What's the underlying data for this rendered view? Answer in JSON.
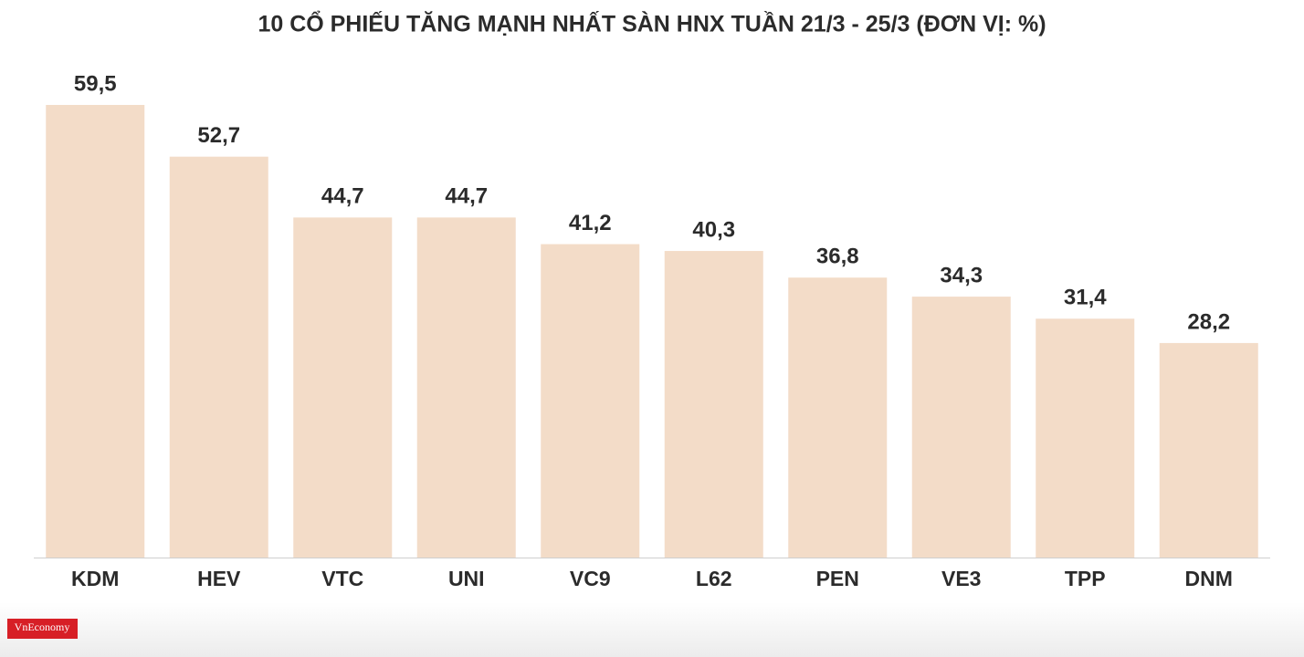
{
  "chart_data": {
    "type": "bar",
    "title": "10 CỔ PHIẾU TĂNG MẠNH NHẤT SÀN HNX TUẦN 21/3 - 25/3 (ĐƠN VỊ: %)",
    "categories": [
      "KDM",
      "HEV",
      "VTC",
      "UNI",
      "VC9",
      "L62",
      "PEN",
      "VE3",
      "TPP",
      "DNM"
    ],
    "values": [
      59.5,
      52.7,
      44.7,
      44.7,
      41.2,
      40.3,
      36.8,
      34.3,
      31.4,
      28.2
    ],
    "value_labels": [
      "59,5",
      "52,7",
      "44,7",
      "44,7",
      "41,2",
      "40,3",
      "36,8",
      "34,3",
      "31,4",
      "28,2"
    ],
    "color": "#f3dcc8"
  },
  "logo": "VnEconomy"
}
